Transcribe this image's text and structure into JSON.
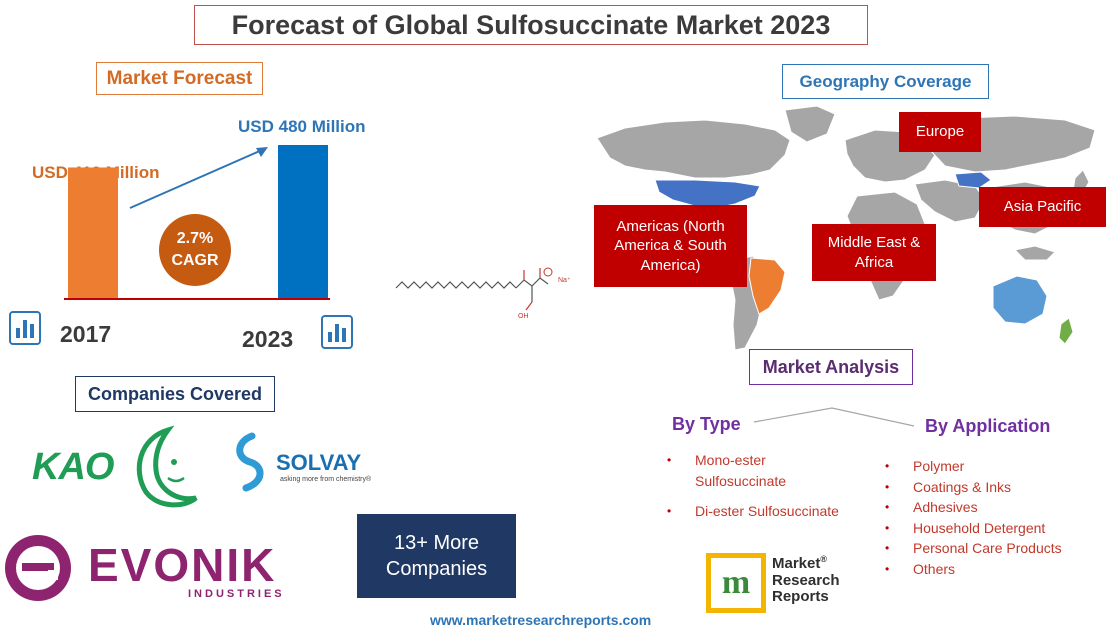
{
  "title": "Forecast of Global Sulfosuccinate Market 2023",
  "market_forecast": {
    "heading": "Market Forecast",
    "value_2017": "USD 410 Million",
    "value_2023": "USD 480 Million",
    "cagr_value": "2.7%",
    "cagr_label": "CAGR",
    "year_start": "2017",
    "year_end": "2023"
  },
  "chart_data": {
    "type": "bar",
    "categories": [
      "2017",
      "2023"
    ],
    "values": [
      410,
      480
    ],
    "colors": [
      "#ed7d31",
      "#0070c0"
    ]
  },
  "geography": {
    "heading": "Geography Coverage",
    "regions": {
      "europe": "Europe",
      "americas": "Americas (North America & South America)",
      "middle_east": "Middle East & Africa",
      "asia": "Asia Pacific"
    }
  },
  "companies": {
    "heading": "Companies Covered",
    "kao": "KAO",
    "solvay": "SOLVAY",
    "solvay_tagline": "asking more from chemistry®",
    "evonik": "EVONIK",
    "evonik_sub": "INDUSTRIES",
    "more": "13+ More Companies"
  },
  "analysis": {
    "heading": "Market Analysis",
    "by_type_heading": "By Type",
    "by_type": [
      "Mono-ester Sulfosuccinate",
      "Di-ester Sulfosuccinate"
    ],
    "by_application_heading": "By Application",
    "by_application": [
      "Polymer",
      "Coatings & Inks",
      "Adhesives",
      "Household Detergent",
      "Personal Care Products",
      "Others"
    ]
  },
  "brand": {
    "line1": "Market",
    "line2": "Research",
    "line3": "Reports",
    "reg": "®",
    "website": "www.marketresearchreports.com"
  },
  "molecule": {
    "na": "Na⁺",
    "oh": "OH"
  }
}
